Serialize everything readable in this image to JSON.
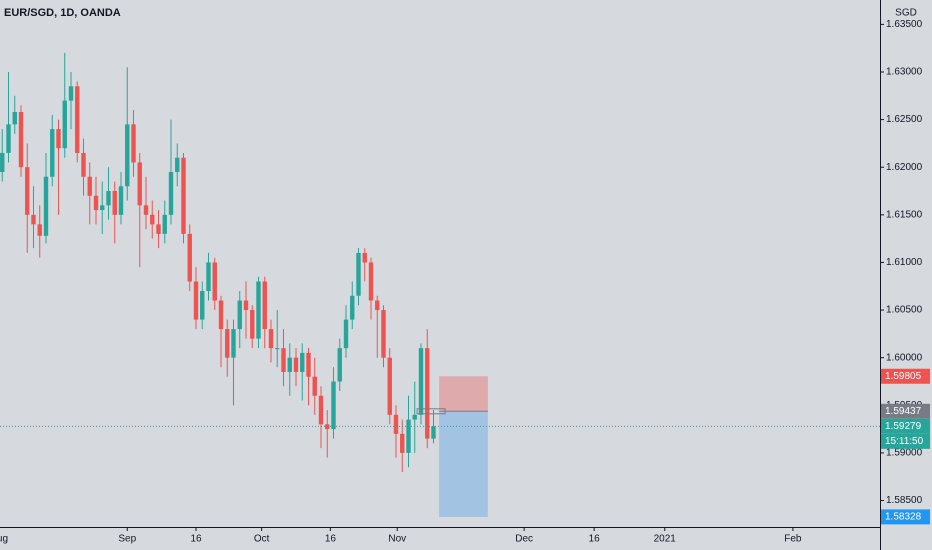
{
  "chart_data": {
    "type": "candlestick",
    "title": "EUR/SGD, 1D, OANDA",
    "currency": "SGD",
    "up_color": "#26a69a",
    "down_color": "#ef5350",
    "open": [
      1.618,
      1.6195,
      1.6215,
      1.6245,
      1.6258,
      1.62,
      1.615,
      1.614,
      1.6128,
      1.619,
      1.624,
      1.622,
      1.627,
      1.6285,
      1.6215,
      1.619,
      1.617,
      1.6155,
      1.616,
      1.6175,
      1.615,
      1.618,
      1.6245,
      1.6205,
      1.616,
      1.615,
      1.614,
      1.613,
      1.615,
      1.6195,
      1.621,
      1.613,
      1.608,
      1.604,
      1.607,
      1.61,
      1.606,
      1.603,
      1.6,
      1.603,
      1.606,
      1.605,
      1.602,
      1.608,
      1.603,
      1.601,
      1.601,
      1.5985,
      1.6,
      1.5985,
      1.6005,
      1.598,
      1.596,
      1.593,
      1.5925,
      1.5975,
      1.601,
      1.604,
      1.6065,
      1.611,
      1.61,
      1.606,
      1.605,
      1.6,
      1.594,
      1.592,
      1.59,
      1.5935,
      1.594,
      1.601,
      1.5915
    ],
    "high": [
      1.6205,
      1.624,
      1.63,
      1.6275,
      1.6265,
      1.6225,
      1.618,
      1.616,
      1.6215,
      1.6255,
      1.625,
      1.632,
      1.63,
      1.629,
      1.623,
      1.6205,
      1.619,
      1.6185,
      1.62,
      1.6185,
      1.6195,
      1.6305,
      1.626,
      1.6215,
      1.619,
      1.6165,
      1.6155,
      1.6165,
      1.625,
      1.6225,
      1.6215,
      1.614,
      1.6095,
      1.608,
      1.611,
      1.6105,
      1.6065,
      1.604,
      1.604,
      1.607,
      1.608,
      1.6055,
      1.6085,
      1.6085,
      1.604,
      1.605,
      1.603,
      1.6015,
      1.601,
      1.6015,
      1.601,
      1.6,
      1.597,
      1.5945,
      1.599,
      1.602,
      1.6055,
      1.608,
      1.6115,
      1.6115,
      1.6105,
      1.6065,
      1.6055,
      1.601,
      1.595,
      1.5935,
      1.596,
      1.5975,
      1.6015,
      1.603,
      1.5945
    ],
    "low": [
      1.617,
      1.6185,
      1.6205,
      1.6235,
      1.619,
      1.611,
      1.6115,
      1.6105,
      1.612,
      1.618,
      1.615,
      1.621,
      1.624,
      1.6205,
      1.617,
      1.614,
      1.614,
      1.613,
      1.6145,
      1.612,
      1.614,
      1.6165,
      1.619,
      1.6095,
      1.6135,
      1.6125,
      1.6115,
      1.612,
      1.614,
      1.618,
      1.612,
      1.607,
      1.603,
      1.603,
      1.606,
      1.605,
      1.599,
      1.598,
      1.595,
      1.601,
      1.602,
      1.601,
      1.601,
      1.601,
      1.5995,
      1.599,
      1.597,
      1.596,
      1.597,
      1.5955,
      1.595,
      1.594,
      1.5905,
      1.5895,
      1.5915,
      1.5965,
      1.6,
      1.603,
      1.6055,
      1.608,
      1.604,
      1.6,
      1.599,
      1.593,
      1.5895,
      1.588,
      1.5885,
      1.59,
      1.593,
      1.5905,
      1.591
    ],
    "close": [
      1.6195,
      1.6215,
      1.6245,
      1.6258,
      1.62,
      1.615,
      1.614,
      1.6128,
      1.619,
      1.624,
      1.622,
      1.627,
      1.6285,
      1.6215,
      1.619,
      1.617,
      1.6155,
      1.616,
      1.6175,
      1.615,
      1.618,
      1.6245,
      1.6205,
      1.616,
      1.615,
      1.614,
      1.613,
      1.615,
      1.6195,
      1.621,
      1.613,
      1.608,
      1.604,
      1.607,
      1.61,
      1.606,
      1.603,
      1.6,
      1.603,
      1.606,
      1.605,
      1.602,
      1.608,
      1.603,
      1.601,
      1.601,
      1.5985,
      1.6,
      1.5985,
      1.6005,
      1.598,
      1.596,
      1.593,
      1.5925,
      1.5975,
      1.601,
      1.604,
      1.6065,
      1.611,
      1.61,
      1.606,
      1.605,
      1.6,
      1.594,
      1.592,
      1.59,
      1.5935,
      1.594,
      1.601,
      1.5915,
      1.5928
    ],
    "xlim": [
      0.64,
      141.44
    ],
    "xticks": [
      {
        "value": 0.5,
        "label": "Aug"
      },
      {
        "value": 21,
        "label": "Sep"
      },
      {
        "value": 32,
        "label": "16"
      },
      {
        "value": 42.5,
        "label": "Oct"
      },
      {
        "value": 53.5,
        "label": "16"
      },
      {
        "value": 64.2,
        "label": "Nov"
      },
      {
        "value": 84.5,
        "label": "Dec"
      },
      {
        "value": 95.7,
        "label": "16"
      },
      {
        "value": 107,
        "label": "2021"
      },
      {
        "value": 127.5,
        "label": "Feb"
      }
    ],
    "ylim": [
      1.58222,
      1.63756
    ],
    "yticks": [
      {
        "value": 1.585,
        "label": "1.58500"
      },
      {
        "value": 1.59,
        "label": "1.59000"
      },
      {
        "value": 1.595,
        "label": "1.59500"
      },
      {
        "value": 1.6,
        "label": "1.60000"
      },
      {
        "value": 1.605,
        "label": "1.60500"
      },
      {
        "value": 1.61,
        "label": "1.61000"
      },
      {
        "value": 1.615,
        "label": "1.61500"
      },
      {
        "value": 1.62,
        "label": "1.62000"
      },
      {
        "value": 1.625,
        "label": "1.62500"
      },
      {
        "value": 1.63,
        "label": "1.63000"
      },
      {
        "value": 1.635,
        "label": "1.63500"
      }
    ],
    "last_price": 1.59279,
    "countdown": "15:11:50",
    "position": {
      "entry": 1.59437,
      "stop": 1.59805,
      "target": 1.58328,
      "start": 70.9,
      "end": 78.7
    }
  }
}
